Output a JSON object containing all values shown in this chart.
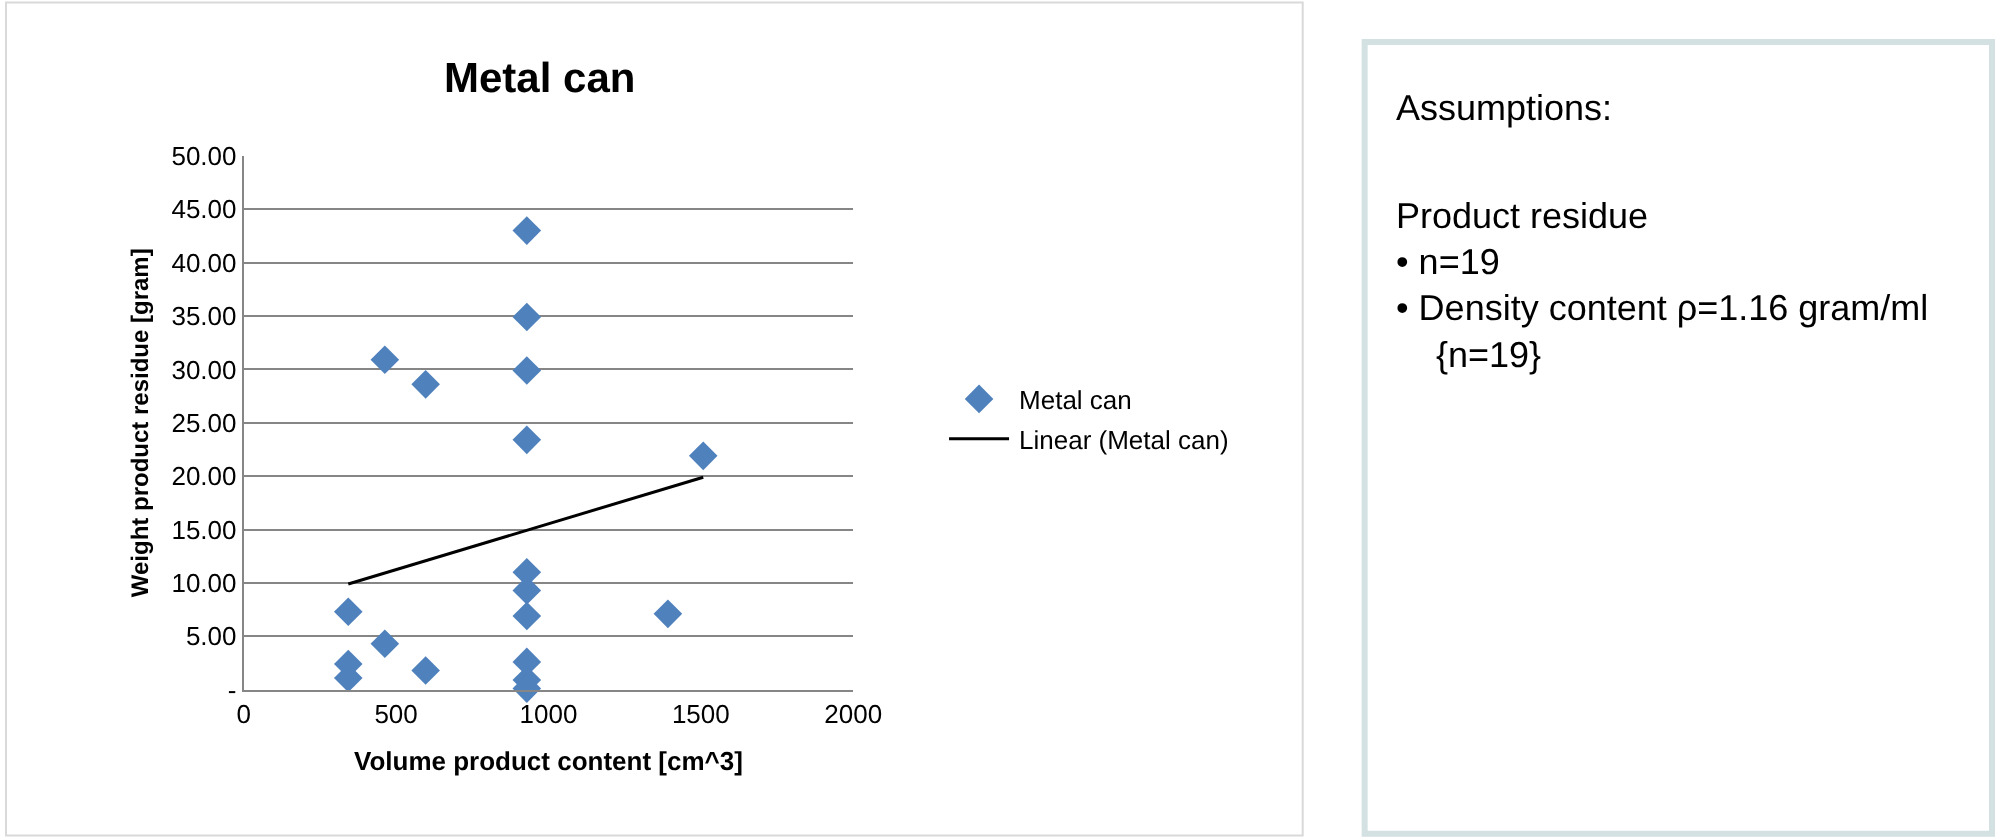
{
  "chart_data": [
    {
      "type": "scatter",
      "title": "Metal can",
      "xlabel": "Volume product content [cm^3]",
      "ylabel": "Weight product residue [gram]",
      "series": [
        {
          "name": "Metal can",
          "color": "#4f81bd",
          "marker": "diamond",
          "x": [
            343,
            343,
            343,
            463,
            463,
            597,
            597,
            929,
            929,
            929,
            929,
            929,
            929,
            929,
            929,
            929,
            929,
            1392,
            1508
          ],
          "values": [
            7.3,
            2.4,
            1.1,
            30.9,
            4.3,
            28.6,
            1.8,
            43,
            34.9,
            29.9,
            23.4,
            11,
            9.3,
            6.9,
            2.6,
            0.9,
            0.1,
            7.1,
            21.9
          ]
        },
        {
          "name": "Linear (Metal can)",
          "type": "line",
          "color": "#000000",
          "marker": "none",
          "line_style": "solid",
          "x": [
            343,
            1508
          ],
          "values": [
            9.9,
            19.9
          ]
        }
      ],
      "xlim": [
        0,
        2000
      ],
      "xticks": [
        0,
        500,
        1000,
        1500,
        2000
      ],
      "ylim": [
        0,
        50
      ],
      "yticks": [
        {
          "value": 0,
          "label": "-"
        },
        {
          "value": 5,
          "label": "5.00"
        },
        {
          "value": 10,
          "label": "10.00"
        },
        {
          "value": 15,
          "label": "15.00"
        },
        {
          "value": 20,
          "label": "20.00"
        },
        {
          "value": 25,
          "label": "25.00"
        },
        {
          "value": 30,
          "label": "30.00"
        },
        {
          "value": 35,
          "label": "35.00"
        },
        {
          "value": 40,
          "label": "40.00"
        },
        {
          "value": 45,
          "label": "45.00"
        },
        {
          "value": 50,
          "label": "50.00"
        }
      ],
      "grid": "y",
      "legend": "right"
    },
    {
      "type": "other",
      "annotations": [
        "Assumptions:",
        "Product residue",
        "• n=19",
        "• Density content ρ=1.16 gram/ml {n=19}"
      ]
    }
  ]
}
